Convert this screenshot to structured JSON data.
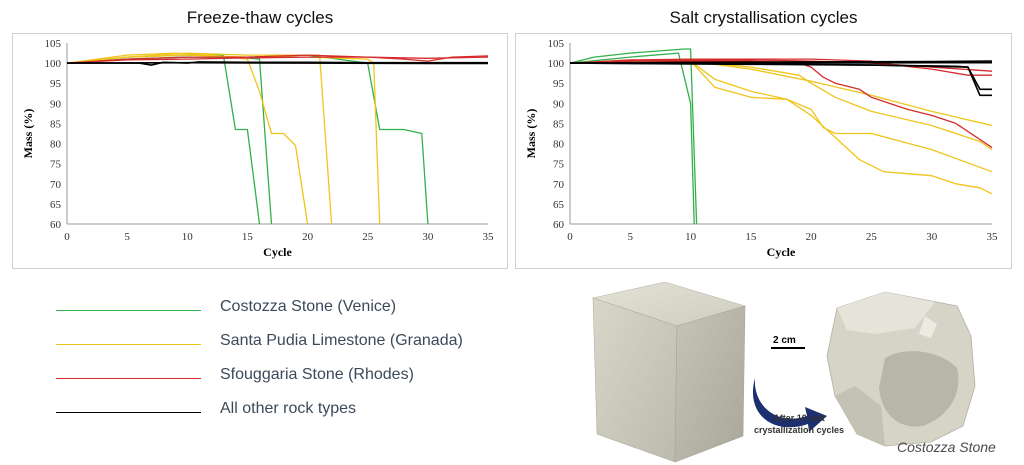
{
  "chart_data": [
    {
      "type": "line",
      "title": "Freeze-thaw cycles",
      "xlabel": "Cycle",
      "ylabel": "Mass (%)",
      "xlim": [
        0,
        35
      ],
      "ylim": [
        60,
        105
      ],
      "xticks": [
        "0",
        "5",
        "10",
        "15",
        "20",
        "25",
        "30",
        "35"
      ],
      "yticks": [
        "60",
        "65",
        "70",
        "75",
        "80",
        "85",
        "90",
        "95",
        "100",
        "105"
      ],
      "grid": false,
      "series": [
        {
          "group": "costozza",
          "color": "#33b04a",
          "x": [
            0,
            5,
            10,
            13,
            14,
            15,
            16
          ],
          "y": [
            100,
            101.5,
            102,
            102,
            83.5,
            83.5,
            60
          ]
        },
        {
          "group": "costozza",
          "color": "#33b04a",
          "x": [
            0,
            5,
            10,
            14,
            16,
            17
          ],
          "y": [
            100,
            101,
            101.5,
            101.5,
            101,
            60
          ]
        },
        {
          "group": "costozza",
          "color": "#33b04a",
          "x": [
            0,
            5,
            10,
            15,
            20,
            25,
            26,
            28,
            29.5,
            30
          ],
          "y": [
            100,
            101,
            101.5,
            101.5,
            102,
            100,
            83.5,
            83.5,
            82.5,
            60
          ]
        },
        {
          "group": "santa_pudia",
          "color": "#f0c419",
          "x": [
            0,
            5,
            9,
            12,
            15,
            16,
            17,
            18,
            19,
            20
          ],
          "y": [
            100,
            102,
            102.5,
            102,
            101,
            93,
            82.5,
            82.5,
            79.5,
            60
          ]
        },
        {
          "group": "santa_pudia",
          "color": "#f0c419",
          "x": [
            0,
            5,
            10,
            15,
            19,
            21,
            22
          ],
          "y": [
            100,
            101.5,
            102.5,
            102,
            102,
            102,
            60
          ]
        },
        {
          "group": "santa_pudia",
          "color": "#f0c419",
          "x": [
            0,
            5,
            10,
            15,
            20,
            25,
            25.5,
            26
          ],
          "y": [
            100,
            101.5,
            102,
            101.5,
            101.5,
            101,
            100,
            60
          ]
        },
        {
          "group": "sfouggaria",
          "color": "#d62b2b",
          "x": [
            0,
            5,
            10,
            15,
            20,
            25,
            28,
            30,
            32,
            35
          ],
          "y": [
            100,
            101,
            101.5,
            101.5,
            102,
            101.5,
            101,
            100.5,
            101.5,
            101.8
          ]
        },
        {
          "group": "sfouggaria",
          "color": "#d62b2b",
          "x": [
            0,
            5,
            10,
            15,
            20,
            25,
            30,
            35
          ],
          "y": [
            100,
            100.8,
            101,
            101.3,
            101.5,
            101.5,
            101.2,
            101.5
          ]
        },
        {
          "group": "other",
          "color": "#000000",
          "x": [
            0,
            6,
            7,
            8,
            10,
            11,
            15,
            20,
            25,
            30,
            35
          ],
          "y": [
            100,
            100,
            99.5,
            100.2,
            100,
            100.3,
            100.2,
            100.2,
            100.1,
            100.1,
            100.1
          ]
        },
        {
          "group": "other",
          "color": "#000000",
          "x": [
            0,
            10,
            20,
            30,
            35
          ],
          "y": [
            100,
            100.1,
            100,
            99.9,
            99.9
          ]
        }
      ]
    },
    {
      "type": "line",
      "title": "Salt crystallisation cycles",
      "xlabel": "Cycle",
      "ylabel": "Mass (%)",
      "xlim": [
        0,
        35
      ],
      "ylim": [
        60,
        105
      ],
      "xticks": [
        "0",
        "5",
        "10",
        "15",
        "20",
        "25",
        "30",
        "35"
      ],
      "yticks": [
        "60",
        "65",
        "70",
        "75",
        "80",
        "85",
        "90",
        "95",
        "100",
        "105"
      ],
      "grid": false,
      "series": [
        {
          "group": "costozza",
          "color": "#33b04a",
          "x": [
            0,
            2,
            5,
            9.5,
            10,
            10.5
          ],
          "y": [
            100,
            101.5,
            102.5,
            103.5,
            103.5,
            60
          ]
        },
        {
          "group": "costozza",
          "color": "#33b04a",
          "x": [
            0,
            5,
            9,
            10,
            10.3
          ],
          "y": [
            100,
            101.5,
            102.5,
            90,
            60
          ]
        },
        {
          "group": "santa_pudia",
          "color": "#f0c419",
          "x": [
            0,
            5,
            10,
            12,
            15,
            18,
            20,
            21,
            22,
            25,
            30,
            35
          ],
          "y": [
            100,
            100.5,
            100.5,
            96,
            93,
            91,
            88.5,
            84,
            82.5,
            82.5,
            78.5,
            73
          ]
        },
        {
          "group": "santa_pudia",
          "color": "#f0c419",
          "x": [
            0,
            5,
            10,
            12,
            15,
            18,
            20,
            22,
            24,
            26,
            28,
            30,
            32,
            34,
            35
          ],
          "y": [
            100,
            100.5,
            100.5,
            94,
            91.5,
            91,
            87,
            81.5,
            76,
            73,
            72.5,
            72,
            70,
            69,
            67.5
          ]
        },
        {
          "group": "santa_pudia",
          "color": "#f0c419",
          "x": [
            0,
            5,
            10,
            15,
            19,
            20,
            22,
            25,
            30,
            34,
            35
          ],
          "y": [
            100,
            100.5,
            100.5,
            99,
            97,
            95,
            91.5,
            88,
            84.5,
            80.5,
            78.5
          ]
        },
        {
          "group": "santa_pudia",
          "color": "#f0c419",
          "x": [
            0,
            5,
            10,
            15,
            20,
            25,
            30,
            35
          ],
          "y": [
            100,
            100.5,
            100.5,
            98.5,
            95.5,
            92,
            88,
            84.5
          ]
        },
        {
          "group": "sfouggaria",
          "color": "#d62b2b",
          "x": [
            0,
            5,
            10,
            15,
            19,
            20,
            21,
            22,
            24,
            25,
            28,
            30,
            32,
            35
          ],
          "y": [
            100,
            100.5,
            100.5,
            100.5,
            100,
            99,
            96.5,
            95,
            93.5,
            91.5,
            88.5,
            87,
            85,
            79
          ]
        },
        {
          "group": "sfouggaria",
          "color": "#d62b2b",
          "x": [
            0,
            5,
            10,
            15,
            20,
            25,
            27,
            30,
            33,
            35
          ],
          "y": [
            100,
            100.8,
            101,
            101,
            101,
            100.5,
            99.5,
            98.5,
            97,
            97
          ]
        },
        {
          "group": "sfouggaria",
          "color": "#d62b2b",
          "x": [
            0,
            5,
            10,
            15,
            20,
            25,
            30,
            35
          ],
          "y": [
            100,
            100.5,
            100.8,
            100.8,
            100.5,
            100,
            99,
            98
          ]
        },
        {
          "group": "other",
          "color": "#000000",
          "x": [
            0,
            5,
            10,
            15,
            20,
            25,
            30,
            32,
            33,
            34,
            35
          ],
          "y": [
            100,
            99.9,
            99.8,
            99.7,
            99.6,
            99.5,
            99.3,
            99.2,
            99,
            92,
            92
          ]
        },
        {
          "group": "other",
          "color": "#000000",
          "x": [
            0,
            10,
            20,
            30,
            35
          ],
          "y": [
            100,
            100.2,
            100.3,
            100.4,
            100.5
          ]
        },
        {
          "group": "other",
          "color": "#000000",
          "x": [
            0,
            10,
            20,
            30,
            35
          ],
          "y": [
            100,
            100,
            100,
            100.1,
            100.1
          ]
        },
        {
          "group": "other",
          "color": "#000000",
          "x": [
            0,
            15,
            25,
            33,
            34,
            35
          ],
          "y": [
            100,
            99.8,
            99.5,
            99,
            93.5,
            93.5
          ]
        }
      ]
    }
  ],
  "legend": [
    {
      "label": "Costozza Stone (Venice)",
      "color": "#33b04a"
    },
    {
      "label": "Santa Pudia Limestone (Granada)",
      "color": "#f0c419"
    },
    {
      "label": "Sfouggaria Stone (Rhodes)",
      "color": "#d62b2b"
    },
    {
      "label": "All other rock types",
      "color": "#000000"
    }
  ],
  "photo": {
    "scale_label": "2 cm",
    "after_label": "After 10 salt crystallization cycles",
    "stone_label": "Costozza Stone",
    "arrow_color": "#1c2f6e"
  }
}
